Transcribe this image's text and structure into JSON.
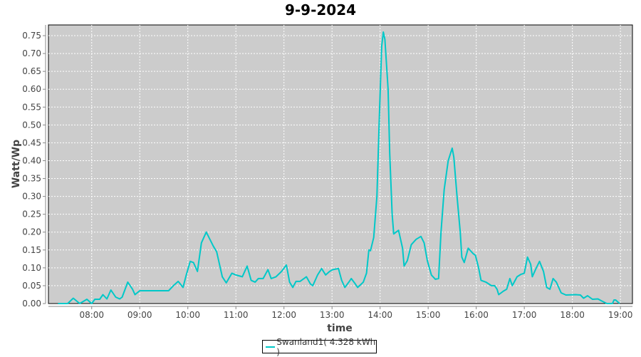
{
  "chart_data": {
    "type": "line",
    "title": "9-9-2024",
    "xlabel": "time",
    "ylabel": "Watt/Wp",
    "xlim": [
      "07:06",
      "19:15"
    ],
    "ylim": [
      0,
      0.78
    ],
    "grid": true,
    "legend_placement": "bottom",
    "background_color": "#cccccc",
    "x_ticks": [
      "08:00",
      "09:00",
      "10:00",
      "11:00",
      "12:00",
      "13:00",
      "14:00",
      "15:00",
      "16:00",
      "17:00",
      "18:00",
      "19:00"
    ],
    "y_ticks": [
      "0.00",
      "0.05",
      "0.10",
      "0.15",
      "0.20",
      "0.25",
      "0.30",
      "0.35",
      "0.40",
      "0.45",
      "0.50",
      "0.55",
      "0.60",
      "0.65",
      "0.70",
      "0.75"
    ],
    "series": [
      {
        "name": "Swanland1( 4.328 kWh )",
        "color": "#00c8c8",
        "x": [
          "07:18",
          "07:30",
          "07:37",
          "07:45",
          "07:54",
          "08:00",
          "08:04",
          "08:10",
          "08:14",
          "08:19",
          "08:24",
          "08:30",
          "08:35",
          "08:38",
          "08:45",
          "08:51",
          "08:54",
          "09:00",
          "09:12",
          "09:30",
          "09:36",
          "09:42",
          "09:48",
          "09:54",
          "09:58",
          "10:03",
          "10:07",
          "10:12",
          "10:17",
          "10:23",
          "10:32",
          "10:36",
          "10:43",
          "10:48",
          "10:55",
          "11:00",
          "11:08",
          "11:14",
          "11:19",
          "11:24",
          "11:28",
          "11:34",
          "11:40",
          "11:44",
          "11:50",
          "11:57",
          "12:03",
          "12:07",
          "12:11",
          "12:15",
          "12:20",
          "12:28",
          "12:33",
          "12:36",
          "12:42",
          "12:47",
          "12:52",
          "12:57",
          "13:01",
          "13:08",
          "13:12",
          "13:16",
          "13:21",
          "13:24",
          "13:29",
          "13:32",
          "13:39",
          "13:43",
          "13:46",
          "13:48",
          "13:52",
          "13:56",
          "13:59",
          "14:02",
          "14:04",
          "14:06",
          "14:10",
          "14:12",
          "14:15",
          "14:17",
          "14:20",
          "14:23",
          "14:28",
          "14:30",
          "14:34",
          "14:39",
          "14:45",
          "14:51",
          "14:55",
          "14:59",
          "15:04",
          "15:09",
          "15:13",
          "15:16",
          "15:20",
          "15:25",
          "15:30",
          "15:32",
          "15:36",
          "15:40",
          "15:42",
          "15:45",
          "15:50",
          "15:56",
          "15:59",
          "16:03",
          "16:06",
          "16:12",
          "16:19",
          "16:23",
          "16:26",
          "16:28",
          "16:34",
          "16:38",
          "16:42",
          "16:45",
          "16:51",
          "16:56",
          "17:00",
          "17:04",
          "17:08",
          "17:10",
          "17:15",
          "17:19",
          "17:24",
          "17:28",
          "17:32",
          "17:36",
          "17:40",
          "17:46",
          "17:52",
          "18:04",
          "18:10",
          "18:14",
          "18:19",
          "18:25",
          "18:32",
          "18:36",
          "18:43",
          "18:50",
          "18:52",
          "18:54",
          "18:59"
        ],
        "values": [
          0,
          0,
          0.015,
          0,
          0.012,
          0,
          0.012,
          0.012,
          0.025,
          0.013,
          0.038,
          0.018,
          0.013,
          0.018,
          0.06,
          0.04,
          0.025,
          0.036,
          0.036,
          0.036,
          0.036,
          0.05,
          0.062,
          0.045,
          0.08,
          0.118,
          0.115,
          0.09,
          0.17,
          0.2,
          0.16,
          0.145,
          0.075,
          0.058,
          0.085,
          0.08,
          0.075,
          0.105,
          0.065,
          0.06,
          0.07,
          0.07,
          0.095,
          0.07,
          0.075,
          0.09,
          0.108,
          0.06,
          0.045,
          0.062,
          0.062,
          0.075,
          0.055,
          0.05,
          0.08,
          0.098,
          0.08,
          0.09,
          0.095,
          0.098,
          0.065,
          0.045,
          0.06,
          0.07,
          0.055,
          0.045,
          0.06,
          0.085,
          0.15,
          0.148,
          0.185,
          0.3,
          0.52,
          0.72,
          0.76,
          0.74,
          0.6,
          0.42,
          0.25,
          0.195,
          0.2,
          0.205,
          0.155,
          0.105,
          0.12,
          0.165,
          0.18,
          0.188,
          0.17,
          0.12,
          0.08,
          0.068,
          0.07,
          0.2,
          0.32,
          0.4,
          0.435,
          0.41,
          0.3,
          0.2,
          0.13,
          0.115,
          0.155,
          0.14,
          0.135,
          0.1,
          0.065,
          0.06,
          0.05,
          0.05,
          0.04,
          0.025,
          0.035,
          0.04,
          0.07,
          0.05,
          0.075,
          0.082,
          0.085,
          0.13,
          0.11,
          0.075,
          0.1,
          0.118,
          0.09,
          0.045,
          0.04,
          0.07,
          0.06,
          0.03,
          0.024,
          0.025,
          0.024,
          0.015,
          0.022,
          0.012,
          0.013,
          0.008,
          0,
          0,
          0.01,
          0.01,
          0
        ]
      }
    ]
  }
}
